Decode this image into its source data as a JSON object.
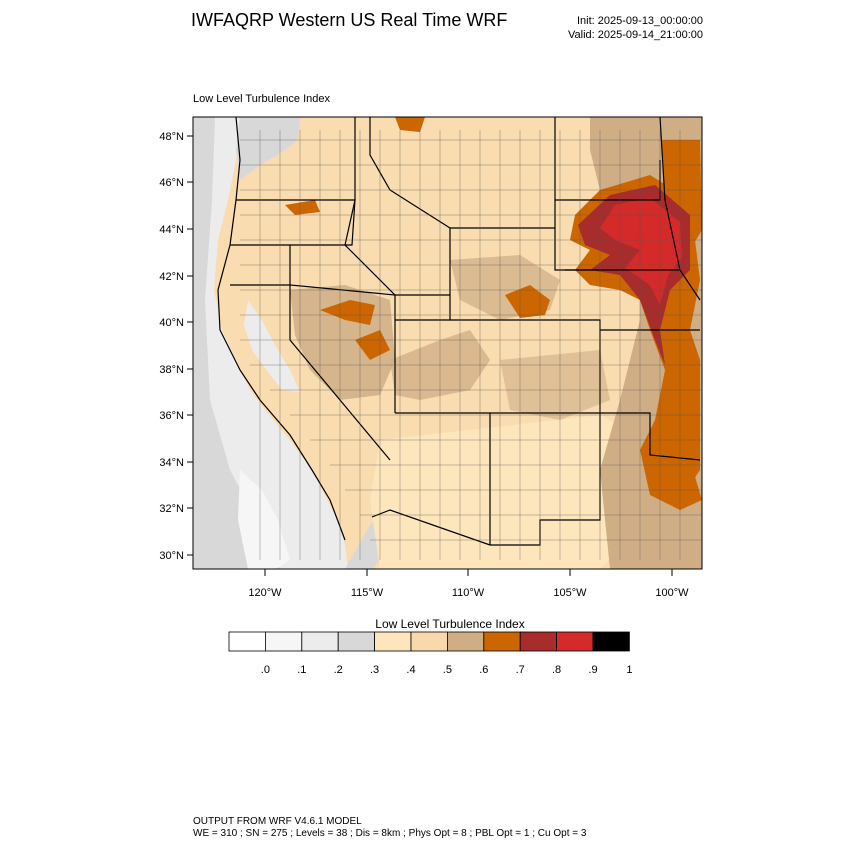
{
  "header": {
    "title": "IWFAQRP Western US Real Time WRF",
    "init": "Init: 2025-09-13_00:00:00",
    "valid": "Valid: 2025-09-14_21:00:00"
  },
  "map": {
    "title": "Low Level Turbulence Index",
    "lat_labels": [
      "48°N",
      "46°N",
      "44°N",
      "42°N",
      "40°N",
      "38°N",
      "36°N",
      "34°N",
      "32°N",
      "30°N"
    ],
    "lon_labels": [
      "120°W",
      "115°W",
      "110°W",
      "105°W",
      "100°W"
    ]
  },
  "colorbar": {
    "title": "Low Level Turbulence Index",
    "colors": [
      "#ffffff",
      "#f6f6f6",
      "#ececec",
      "#d8d8d8",
      "#fde6bc",
      "#f7d9ac",
      "#cfae86",
      "#cc6600",
      "#a82c2c",
      "#d42a2a",
      "#000000"
    ],
    "labels": [
      ".0",
      ".1",
      ".2",
      ".3",
      ".4",
      ".5",
      ".6",
      ".7",
      ".8",
      ".9",
      "1"
    ]
  },
  "footer": {
    "line1": "OUTPUT FROM WRF V4.6.1 MODEL",
    "line2": "WE = 310 ; SN = 275 ; Levels = 38 ; Dis = 8km ; Phys Opt = 8 ; PBL Opt = 1 ; Cu Opt = 3"
  }
}
